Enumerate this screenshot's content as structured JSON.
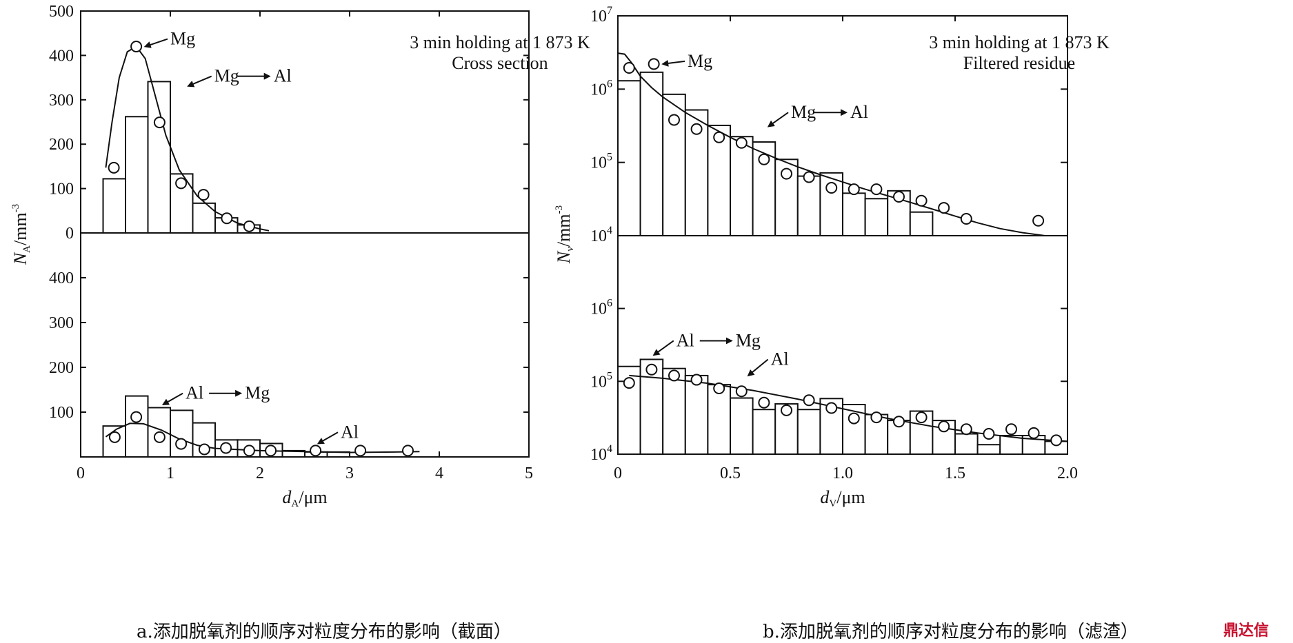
{
  "logo_text": "鼎达信",
  "chart_data": [
    {
      "type": "bar",
      "id": "a",
      "caption": "a.添加脱氧剂的顺序对粒度分布的影响（截面）",
      "annotation": [
        "3 min holding at 1 873 K",
        "Cross section"
      ],
      "xlabel": "d_A/μm",
      "ylabel": "N_A/mm^-3",
      "xlim": [
        0,
        5
      ],
      "xticks": [
        "0",
        "1",
        "2",
        "3",
        "4",
        "5"
      ],
      "ylim": [
        0,
        500
      ],
      "top_yticks": [
        "0",
        "100",
        "200",
        "300",
        "400",
        "500"
      ],
      "bottom_yticks": [
        "0",
        "100",
        "200",
        "300",
        "400"
      ],
      "panels": [
        {
          "position": "top",
          "bars_label": "Mg→Al",
          "bars": [
            {
              "x0": 0.25,
              "x1": 0.5,
              "value": 122
            },
            {
              "x0": 0.5,
              "x1": 0.75,
              "value": 262
            },
            {
              "x0": 0.75,
              "x1": 1.0,
              "value": 341
            },
            {
              "x0": 1.0,
              "x1": 1.25,
              "value": 133
            },
            {
              "x0": 1.25,
              "x1": 1.5,
              "value": 67
            },
            {
              "x0": 1.5,
              "x1": 1.75,
              "value": 34
            },
            {
              "x0": 1.75,
              "x1": 2.0,
              "value": 18
            }
          ],
          "points_label": "Mg",
          "points": [
            {
              "x": 0.37,
              "y": 147
            },
            {
              "x": 0.62,
              "y": 420
            },
            {
              "x": 0.88,
              "y": 249
            },
            {
              "x": 1.12,
              "y": 112
            },
            {
              "x": 1.37,
              "y": 86
            },
            {
              "x": 1.63,
              "y": 33
            },
            {
              "x": 1.88,
              "y": 15
            }
          ],
          "curve": [
            {
              "x": 0.28,
              "y": 147
            },
            {
              "x": 0.35,
              "y": 250
            },
            {
              "x": 0.43,
              "y": 350
            },
            {
              "x": 0.52,
              "y": 408
            },
            {
              "x": 0.62,
              "y": 420
            },
            {
              "x": 0.72,
              "y": 393
            },
            {
              "x": 0.82,
              "y": 318
            },
            {
              "x": 0.95,
              "y": 220
            },
            {
              "x": 1.1,
              "y": 142
            },
            {
              "x": 1.3,
              "y": 83
            },
            {
              "x": 1.5,
              "y": 48
            },
            {
              "x": 1.75,
              "y": 22
            },
            {
              "x": 2.0,
              "y": 9
            },
            {
              "x": 2.1,
              "y": 5
            }
          ],
          "labels": [
            {
              "text": "Mg",
              "x": 1.0,
              "y": 437,
              "arrow_to": {
                "x": 0.72,
                "y": 420
              }
            },
            {
              "text": "Mg",
              "x": 1.49,
              "y": 353,
              "arrow_to": {
                "x": 1.2,
                "y": 331
              },
              "second": "Al"
            }
          ]
        },
        {
          "position": "bottom",
          "bars_label": "Al→Mg",
          "bars": [
            {
              "x0": 0.25,
              "x1": 0.5,
              "value": 69
            },
            {
              "x0": 0.5,
              "x1": 0.75,
              "value": 136
            },
            {
              "x0": 0.75,
              "x1": 1.0,
              "value": 110
            },
            {
              "x0": 1.0,
              "x1": 1.25,
              "value": 104
            },
            {
              "x0": 1.25,
              "x1": 1.5,
              "value": 76
            },
            {
              "x0": 1.5,
              "x1": 1.75,
              "value": 38
            },
            {
              "x0": 1.75,
              "x1": 2.0,
              "value": 38
            },
            {
              "x0": 2.0,
              "x1": 2.25,
              "value": 30
            },
            {
              "x0": 2.25,
              "x1": 2.5,
              "value": 14
            },
            {
              "x0": 2.5,
              "x1": 2.75,
              "value": 11
            },
            {
              "x0": 2.75,
              "x1": 3.0,
              "value": 11
            }
          ],
          "points_label": "Al",
          "points": [
            {
              "x": 0.38,
              "y": 44
            },
            {
              "x": 0.62,
              "y": 89
            },
            {
              "x": 0.88,
              "y": 44
            },
            {
              "x": 1.12,
              "y": 29
            },
            {
              "x": 1.38,
              "y": 17
            },
            {
              "x": 1.62,
              "y": 20
            },
            {
              "x": 1.88,
              "y": 14
            },
            {
              "x": 2.12,
              "y": 14
            },
            {
              "x": 2.62,
              "y": 14
            },
            {
              "x": 3.12,
              "y": 14
            },
            {
              "x": 3.65,
              "y": 14
            }
          ],
          "curve": [
            {
              "x": 0.28,
              "y": 45
            },
            {
              "x": 0.4,
              "y": 62
            },
            {
              "x": 0.55,
              "y": 75
            },
            {
              "x": 0.7,
              "y": 74
            },
            {
              "x": 0.9,
              "y": 60
            },
            {
              "x": 1.1,
              "y": 40
            },
            {
              "x": 1.3,
              "y": 26
            },
            {
              "x": 1.5,
              "y": 19
            },
            {
              "x": 2.0,
              "y": 14
            },
            {
              "x": 2.5,
              "y": 12
            },
            {
              "x": 3.0,
              "y": 10
            },
            {
              "x": 3.5,
              "y": 11
            },
            {
              "x": 3.78,
              "y": 12
            }
          ],
          "labels": [
            {
              "text": "Al",
              "x": 1.17,
              "y": 142,
              "arrow_to": {
                "x": 0.92,
                "y": 117
              },
              "second": "Mg"
            },
            {
              "text": "Al",
              "x": 2.9,
              "y": 55,
              "arrow_to": {
                "x": 2.65,
                "y": 30
              }
            }
          ]
        }
      ]
    },
    {
      "type": "bar",
      "id": "b",
      "caption": "b.添加脱氧剂的顺序对粒度分布的影响（滤渣）",
      "annotation": [
        "3 min holding at 1 873 K",
        "Filtered residue"
      ],
      "xlabel": "d_V/μm",
      "ylabel": "N_v/mm^-3",
      "xlim": [
        0,
        2.0
      ],
      "xticks": [
        "0",
        "0.5",
        "1.0",
        "1.5",
        "2.0"
      ],
      "yscale": "log",
      "ylim_top": [
        10000,
        10000000
      ],
      "ylim_bottom": [
        10000,
        10000000
      ],
      "top_yticks": [
        "10^4",
        "10^5",
        "10^6",
        "10^7"
      ],
      "bottom_yticks": [
        "10^4",
        "10^5",
        "10^6"
      ],
      "panels": [
        {
          "position": "top",
          "bars_label": "Mg→Al",
          "bars": [
            {
              "x0": 0.0,
              "x1": 0.1,
              "value": 1300000
            },
            {
              "x0": 0.1,
              "x1": 0.2,
              "value": 1700000
            },
            {
              "x0": 0.2,
              "x1": 0.3,
              "value": 850000
            },
            {
              "x0": 0.3,
              "x1": 0.4,
              "value": 520000
            },
            {
              "x0": 0.4,
              "x1": 0.5,
              "value": 320000
            },
            {
              "x0": 0.5,
              "x1": 0.6,
              "value": 225000
            },
            {
              "x0": 0.6,
              "x1": 0.7,
              "value": 190000
            },
            {
              "x0": 0.7,
              "x1": 0.8,
              "value": 110000
            },
            {
              "x0": 0.8,
              "x1": 0.9,
              "value": 65000
            },
            {
              "x0": 0.9,
              "x1": 1.0,
              "value": 72000
            },
            {
              "x0": 1.0,
              "x1": 1.1,
              "value": 38000
            },
            {
              "x0": 1.1,
              "x1": 1.2,
              "value": 32000
            },
            {
              "x0": 1.2,
              "x1": 1.3,
              "value": 41000
            },
            {
              "x0": 1.3,
              "x1": 1.4,
              "value": 21000
            }
          ],
          "points_label": "Mg",
          "points": [
            {
              "x": 0.05,
              "y": 1950000
            },
            {
              "x": 0.16,
              "y": 2200000
            },
            {
              "x": 0.25,
              "y": 380000
            },
            {
              "x": 0.35,
              "y": 285000
            },
            {
              "x": 0.45,
              "y": 220000
            },
            {
              "x": 0.55,
              "y": 185000
            },
            {
              "x": 0.65,
              "y": 110000
            },
            {
              "x": 0.75,
              "y": 70000
            },
            {
              "x": 0.85,
              "y": 63000
            },
            {
              "x": 0.95,
              "y": 45000
            },
            {
              "x": 1.05,
              "y": 43000
            },
            {
              "x": 1.15,
              "y": 43000
            },
            {
              "x": 1.25,
              "y": 34000
            },
            {
              "x": 1.35,
              "y": 30000
            },
            {
              "x": 1.45,
              "y": 24000
            },
            {
              "x": 1.55,
              "y": 17000
            },
            {
              "x": 1.87,
              "y": 16000
            }
          ],
          "curve": [
            {
              "x": 0.0,
              "y": 3100000
            },
            {
              "x": 0.03,
              "y": 3000000
            },
            {
              "x": 0.06,
              "y": 2300000
            },
            {
              "x": 0.1,
              "y": 1500000
            },
            {
              "x": 0.15,
              "y": 1050000
            },
            {
              "x": 0.2,
              "y": 780000
            },
            {
              "x": 0.3,
              "y": 480000
            },
            {
              "x": 0.4,
              "y": 320000
            },
            {
              "x": 0.5,
              "y": 220000
            },
            {
              "x": 0.6,
              "y": 155000
            },
            {
              "x": 0.7,
              "y": 115000
            },
            {
              "x": 0.8,
              "y": 87000
            },
            {
              "x": 0.9,
              "y": 68000
            },
            {
              "x": 1.0,
              "y": 54000
            },
            {
              "x": 1.1,
              "y": 43000
            },
            {
              "x": 1.2,
              "y": 35000
            },
            {
              "x": 1.3,
              "y": 28500
            },
            {
              "x": 1.4,
              "y": 23000
            },
            {
              "x": 1.5,
              "y": 18500
            },
            {
              "x": 1.6,
              "y": 15000
            },
            {
              "x": 1.7,
              "y": 12500
            },
            {
              "x": 1.8,
              "y": 11000
            },
            {
              "x": 1.9,
              "y": 10000
            }
          ],
          "labels": [
            {
              "text": "Mg",
              "x": 0.31,
              "y": 2400000,
              "arrow_to": {
                "x": 0.2,
                "y": 2200000
              }
            },
            {
              "text": "Mg",
              "x": 0.77,
              "y": 480000,
              "arrow_to": {
                "x": 0.67,
                "y": 310000
              },
              "second": "Al"
            }
          ]
        },
        {
          "position": "bottom",
          "bars_label": "Al→Mg",
          "bars": [
            {
              "x0": 0.0,
              "x1": 0.1,
              "value": 160000
            },
            {
              "x0": 0.1,
              "x1": 0.2,
              "value": 200000
            },
            {
              "x0": 0.2,
              "x1": 0.3,
              "value": 150000
            },
            {
              "x0": 0.3,
              "x1": 0.4,
              "value": 120000
            },
            {
              "x0": 0.4,
              "x1": 0.5,
              "value": 90000
            },
            {
              "x0": 0.5,
              "x1": 0.6,
              "value": 59000
            },
            {
              "x0": 0.6,
              "x1": 0.7,
              "value": 41000
            },
            {
              "x0": 0.7,
              "x1": 0.8,
              "value": 49000
            },
            {
              "x0": 0.8,
              "x1": 0.9,
              "value": 41000
            },
            {
              "x0": 0.9,
              "x1": 1.0,
              "value": 58000
            },
            {
              "x0": 1.0,
              "x1": 1.1,
              "value": 48000
            },
            {
              "x0": 1.1,
              "x1": 1.2,
              "value": 35000
            },
            {
              "x0": 1.2,
              "x1": 1.3,
              "value": 29000
            },
            {
              "x0": 1.3,
              "x1": 1.4,
              "value": 39000
            },
            {
              "x0": 1.4,
              "x1": 1.5,
              "value": 29000
            },
            {
              "x0": 1.5,
              "x1": 1.6,
              "value": 19000
            },
            {
              "x0": 1.6,
              "x1": 1.7,
              "value": 13500
            },
            {
              "x0": 1.7,
              "x1": 1.8,
              "value": 18000
            },
            {
              "x0": 1.8,
              "x1": 1.9,
              "value": 18000
            },
            {
              "x0": 1.9,
              "x1": 2.0,
              "value": 15000
            }
          ],
          "points_label": "Al",
          "points": [
            {
              "x": 0.05,
              "y": 95000
            },
            {
              "x": 0.15,
              "y": 145000
            },
            {
              "x": 0.25,
              "y": 120000
            },
            {
              "x": 0.35,
              "y": 105000
            },
            {
              "x": 0.45,
              "y": 80000
            },
            {
              "x": 0.55,
              "y": 73000
            },
            {
              "x": 0.65,
              "y": 51000
            },
            {
              "x": 0.75,
              "y": 40000
            },
            {
              "x": 0.85,
              "y": 55000
            },
            {
              "x": 0.95,
              "y": 43000
            },
            {
              "x": 1.05,
              "y": 31000
            },
            {
              "x": 1.15,
              "y": 32000
            },
            {
              "x": 1.25,
              "y": 28000
            },
            {
              "x": 1.35,
              "y": 32000
            },
            {
              "x": 1.45,
              "y": 24000
            },
            {
              "x": 1.55,
              "y": 22000
            },
            {
              "x": 1.65,
              "y": 19000
            },
            {
              "x": 1.75,
              "y": 22000
            },
            {
              "x": 1.85,
              "y": 19500
            },
            {
              "x": 1.95,
              "y": 15500
            }
          ],
          "curve": [
            {
              "x": 0.05,
              "y": 120000
            },
            {
              "x": 0.2,
              "y": 110000
            },
            {
              "x": 0.4,
              "y": 94000
            },
            {
              "x": 0.6,
              "y": 75000
            },
            {
              "x": 0.8,
              "y": 57000
            },
            {
              "x": 1.0,
              "y": 42000
            },
            {
              "x": 1.2,
              "y": 31000
            },
            {
              "x": 1.4,
              "y": 24000
            },
            {
              "x": 1.6,
              "y": 19500
            },
            {
              "x": 1.8,
              "y": 16500
            },
            {
              "x": 2.0,
              "y": 15000
            }
          ],
          "labels": [
            {
              "text": "Al",
              "x": 0.26,
              "y": 360000,
              "arrow_to": {
                "x": 0.16,
                "y": 230000
              },
              "second": "Mg"
            },
            {
              "text": "Al",
              "x": 0.68,
              "y": 200000,
              "arrow_to": {
                "x": 0.58,
                "y": 120000
              }
            }
          ]
        }
      ]
    }
  ]
}
